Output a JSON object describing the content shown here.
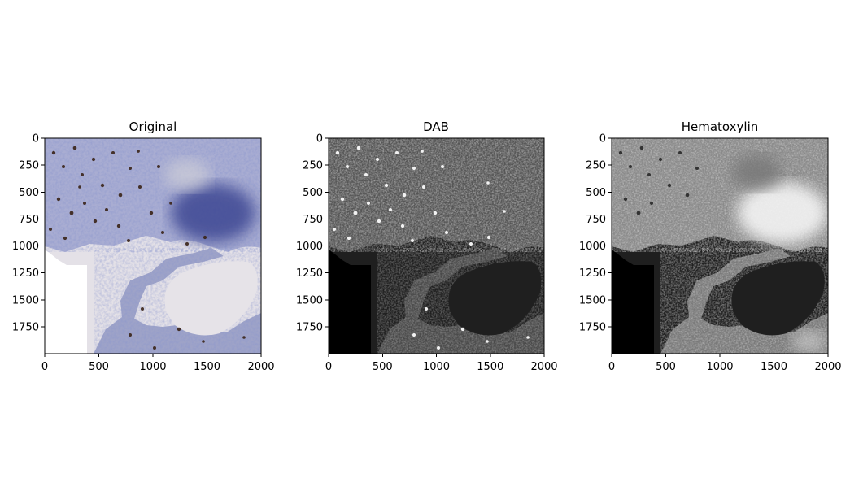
{
  "panels": [
    {
      "id": "original",
      "title": "Original",
      "image_type": "rgb-tissue",
      "colors": {
        "background": "#e6e3e8",
        "blank": "#ffffff",
        "stain_blue": "#3e4a9c",
        "stain_brown": "#3a2418",
        "tissue": "#a7acd0"
      }
    },
    {
      "id": "dab",
      "title": "DAB",
      "image_type": "grayscale-dark",
      "colors": {
        "background": "#1f1f1f",
        "blank": "#000000",
        "speckle": "#9a9a9a",
        "bright": "#f2f2f2"
      }
    },
    {
      "id": "hematoxylin",
      "title": "Hematoxylin",
      "image_type": "grayscale-bright",
      "colors": {
        "background": "#1f1f1f",
        "blank": "#000000",
        "speckle": "#bdbdbd",
        "bright": "#f7f7f7"
      }
    }
  ],
  "axes": {
    "x_ticks": [
      0,
      500,
      1000,
      1500,
      2000
    ],
    "y_ticks": [
      0,
      250,
      500,
      750,
      1000,
      1250,
      1500,
      1750
    ],
    "xlim": [
      0,
      2000
    ],
    "ylim": [
      2000,
      0
    ]
  }
}
